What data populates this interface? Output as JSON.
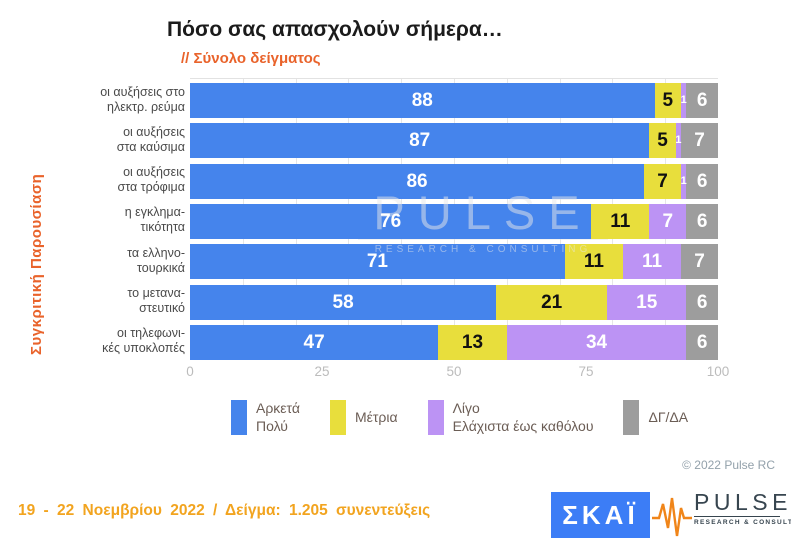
{
  "title": "Πόσο σας απασχολούν σήμερα…",
  "subtitle": "// Σύνολο δείγματος",
  "side_label": "Συγκριτική  Παρουσίαση",
  "watermark": {
    "line1": "PULSE",
    "line2": "RESEARCH & CONSULTING"
  },
  "copyright": "© 2022 Pulse RC",
  "footer": {
    "text": "19 - 22 Νοεμβρίου 2022 / Δείγμα: 1.205 συνεντεύξεις"
  },
  "logos": {
    "skai": "ΣΚΑΪ",
    "pulse": "PULSE",
    "pulse_sub": "RESEARCH & CONSULTING"
  },
  "chart_data": {
    "type": "bar",
    "stacked": true,
    "orientation": "horizontal",
    "title": "Πόσο σας απασχολούν σήμερα…",
    "subtitle": "// Σύνολο δείγματος",
    "categories": [
      "οι αυξήσεις στο ηλεκτρ. ρεύμα",
      "οι αυξήσεις στα καύσιμα",
      "οι αυξήσεις στα τρόφιμα",
      "η εγκληματικότητα",
      "τα ελληνοτουρκικά",
      "το μεταναστευτικό",
      "οι τηλεφωνικές υποκλοπές"
    ],
    "category_lines": [
      [
        "οι αυξήσεις στο",
        "ηλεκτρ. ρεύμα"
      ],
      [
        "οι αυξήσεις",
        "στα καύσιμα"
      ],
      [
        "οι αυξήσεις",
        "στα τρόφιμα"
      ],
      [
        "η εγκλημα-",
        "τικότητα"
      ],
      [
        "τα ελληνο-",
        "τουρκικά"
      ],
      [
        "το μετανα-",
        "στευτικό"
      ],
      [
        "οι τηλεφωνι-",
        "κές υποκλοπές"
      ]
    ],
    "series": [
      {
        "name": "Αρκετά Πολύ",
        "legend_lines": [
          "Αρκετά",
          "Πολύ"
        ],
        "color": "#4584EC",
        "label_color": "#ffffff",
        "values": [
          88,
          87,
          86,
          76,
          71,
          58,
          47
        ]
      },
      {
        "name": "Μέτρια",
        "legend_lines": [
          "Μέτρια"
        ],
        "color": "#E8DE3C",
        "label_color": "#111111",
        "values": [
          5,
          5,
          7,
          11,
          11,
          21,
          13
        ]
      },
      {
        "name": "Λίγο Ελάχιστα έως καθόλου",
        "legend_lines": [
          "Λίγο",
          "Ελάχιστα έως καθόλου"
        ],
        "color": "#BC93F4",
        "label_color": "#ffffff",
        "values": [
          1,
          1,
          1,
          7,
          11,
          15,
          34
        ]
      },
      {
        "name": "ΔΓ/ΔΑ",
        "legend_lines": [
          "ΔΓ/ΔΑ"
        ],
        "color": "#9D9D9D",
        "label_color": "#ffffff",
        "values": [
          6,
          7,
          6,
          6,
          7,
          6,
          6
        ]
      }
    ],
    "xlim": [
      0,
      100
    ],
    "x_ticks": [
      0,
      25,
      50,
      75,
      100
    ],
    "grid_step": 10,
    "legend_position": "bottom"
  }
}
